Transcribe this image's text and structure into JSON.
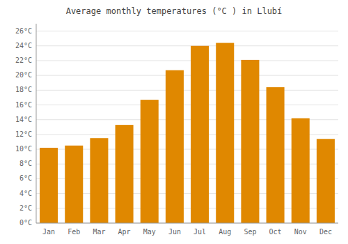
{
  "chart_data": {
    "type": "bar",
    "title": "Average monthly temperatures (°C ) in Llubí",
    "categories": [
      "Jan",
      "Feb",
      "Mar",
      "Apr",
      "May",
      "Jun",
      "Jul",
      "Aug",
      "Sep",
      "Oct",
      "Nov",
      "Dec"
    ],
    "values": [
      10.2,
      10.5,
      11.5,
      13.3,
      16.7,
      20.7,
      24.0,
      24.4,
      22.1,
      18.4,
      14.2,
      11.4
    ],
    "color": "#E08800",
    "ylim": [
      0,
      27
    ],
    "yticks": [
      {
        "value": 0,
        "label": "0°C"
      },
      {
        "value": 2,
        "label": "2°C"
      },
      {
        "value": 4,
        "label": "4°C"
      },
      {
        "value": 6,
        "label": "6°C"
      },
      {
        "value": 8,
        "label": "8°C"
      },
      {
        "value": 10,
        "label": "10°C"
      },
      {
        "value": 12,
        "label": "12°C"
      },
      {
        "value": 14,
        "label": "14°C"
      },
      {
        "value": 16,
        "label": "16°C"
      },
      {
        "value": 18,
        "label": "18°C"
      },
      {
        "value": 20,
        "label": "20°C"
      },
      {
        "value": 22,
        "label": "22°C"
      },
      {
        "value": 24,
        "label": "24°C"
      },
      {
        "value": 26,
        "label": "26°C"
      }
    ],
    "grid": true
  }
}
